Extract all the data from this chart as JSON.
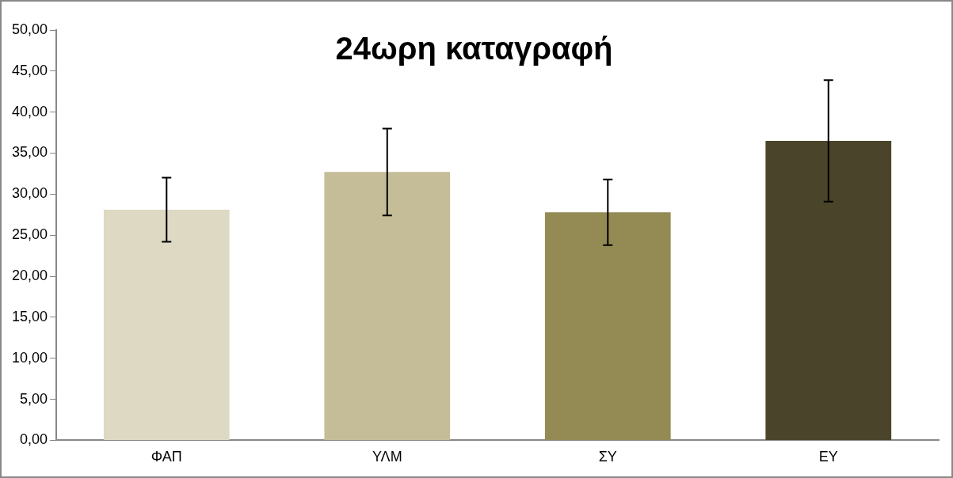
{
  "chart_data": {
    "type": "bar",
    "title": "24ωρη καταγραφή",
    "categories": [
      "ΦΑΠ",
      "ΥΛΜ",
      "ΣΥ",
      "ΕΥ"
    ],
    "values": [
      28.1,
      32.7,
      27.8,
      36.5
    ],
    "colors": [
      "#ddd9c3",
      "#c4bd97",
      "#948a54",
      "#4a452a"
    ],
    "errors": [
      3.9,
      5.3,
      4.0,
      7.4
    ],
    "ylim": [
      0,
      50
    ],
    "yticks": [
      {
        "value": 0,
        "label": "0,00"
      },
      {
        "value": 5,
        "label": "5,00"
      },
      {
        "value": 10,
        "label": "10,00"
      },
      {
        "value": 15,
        "label": "15,00"
      },
      {
        "value": 20,
        "label": "20,00"
      },
      {
        "value": 25,
        "label": "25,00"
      },
      {
        "value": 30,
        "label": "30,00"
      },
      {
        "value": 35,
        "label": "35,00"
      },
      {
        "value": 40,
        "label": "40,00"
      },
      {
        "value": 45,
        "label": "45,00"
      },
      {
        "value": 50,
        "label": "50,00"
      }
    ],
    "grid": false,
    "legend": false
  }
}
